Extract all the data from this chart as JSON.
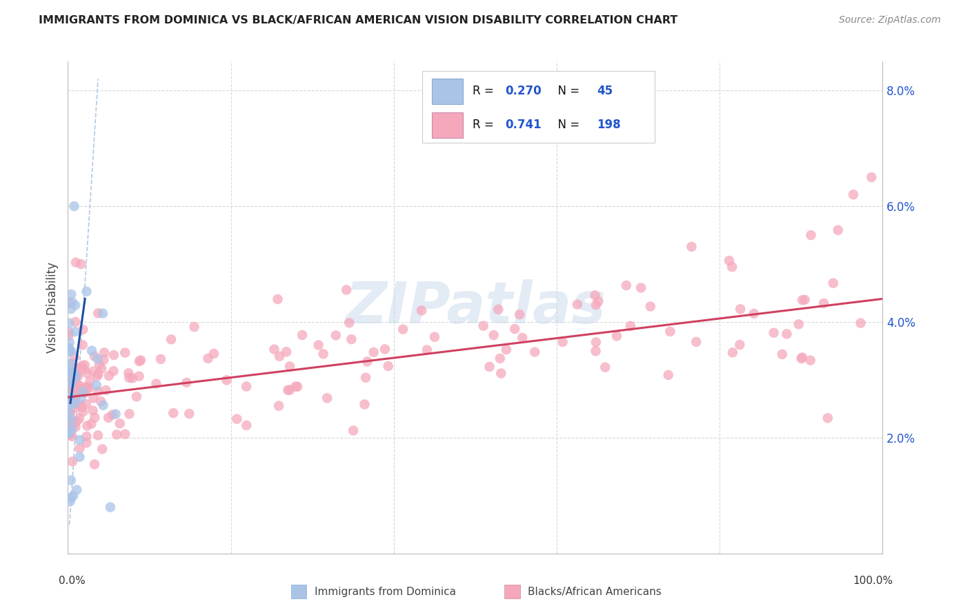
{
  "title": "IMMIGRANTS FROM DOMINICA VS BLACK/AFRICAN AMERICAN VISION DISABILITY CORRELATION CHART",
  "source": "Source: ZipAtlas.com",
  "ylabel": "Vision Disability",
  "legend_label_blue": "Immigrants from Dominica",
  "legend_label_pink": "Blacks/African Americans",
  "blue_scatter_color": "#aac4e8",
  "pink_scatter_color": "#f5a8bc",
  "blue_line_color": "#1a4fa0",
  "pink_line_color": "#d04060",
  "ref_line_color": "#b0c8e4",
  "grid_color": "#d8d8d8",
  "title_color": "#222222",
  "source_color": "#888888",
  "y_axis_color": "#2255cc",
  "legend_r_color": "#2255cc",
  "legend_n_color": "#2255cc",
  "legend_r_blue": "0.270",
  "legend_n_blue": "45",
  "legend_r_pink": "0.741",
  "legend_n_pink": "198",
  "xlim": [
    0.0,
    1.0
  ],
  "ylim": [
    0.0,
    0.085
  ],
  "y_ticks": [
    0.0,
    0.02,
    0.04,
    0.06,
    0.08
  ],
  "y_tick_labels": [
    "",
    "2.0%",
    "4.0%",
    "6.0%",
    "8.0%"
  ],
  "x_ticks": [
    0.0,
    0.2,
    0.4,
    0.6,
    0.8,
    1.0
  ],
  "blue_trend_x": [
    0.003,
    0.021
  ],
  "blue_trend_y": [
    0.026,
    0.044
  ],
  "pink_trend_x": [
    0.0,
    1.0
  ],
  "pink_trend_y": [
    0.027,
    0.044
  ],
  "ref_trend_x": [
    0.002,
    0.037
  ],
  "ref_trend_y": [
    0.005,
    0.082
  ],
  "watermark": "ZIPatlas",
  "watermark_color": "#c8d8ec"
}
